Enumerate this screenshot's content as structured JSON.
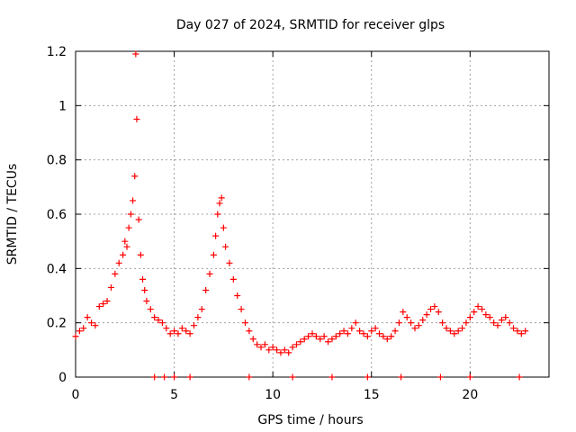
{
  "chart_data": {
    "type": "scatter",
    "title": "Day 027 of 2024, SRMTID for receiver glps",
    "xlabel": "GPS time / hours",
    "ylabel": "SRMTID / TECUs",
    "xlim": [
      0,
      24
    ],
    "ylim": [
      0,
      1.2
    ],
    "x_ticks": [
      0,
      5,
      10,
      15,
      20
    ],
    "x_tick_labels": [
      "0",
      "5",
      "10",
      "15",
      "20"
    ],
    "y_ticks": [
      0,
      0.2,
      0.4,
      0.6,
      0.8,
      1.0,
      1.2
    ],
    "y_tick_labels": [
      "0",
      "0.2",
      "0.4",
      "0.6",
      "0.8",
      "1",
      "1.2"
    ],
    "grid": true,
    "marker": "+",
    "color": "#ff0000",
    "series": [
      {
        "name": "SRMTID",
        "x": [
          0.0,
          0.2,
          0.4,
          0.6,
          0.8,
          1.0,
          1.2,
          1.4,
          1.6,
          1.8,
          2.0,
          2.2,
          2.4,
          2.5,
          2.6,
          2.7,
          2.8,
          2.9,
          3.0,
          3.05,
          3.1,
          3.2,
          3.3,
          3.4,
          3.5,
          3.6,
          3.8,
          4.0,
          4.2,
          4.4,
          4.6,
          4.8,
          5.0,
          5.2,
          5.4,
          5.6,
          5.8,
          6.0,
          6.2,
          6.4,
          6.6,
          6.8,
          7.0,
          7.1,
          7.2,
          7.3,
          7.4,
          7.5,
          7.6,
          7.8,
          8.0,
          8.2,
          8.4,
          8.6,
          8.8,
          9.0,
          9.2,
          9.4,
          9.6,
          9.8,
          10.0,
          10.2,
          10.4,
          10.6,
          10.8,
          11.0,
          11.2,
          11.4,
          11.6,
          11.8,
          12.0,
          12.2,
          12.4,
          12.6,
          12.8,
          13.0,
          13.2,
          13.4,
          13.6,
          13.8,
          14.0,
          14.2,
          14.4,
          14.6,
          14.8,
          15.0,
          15.2,
          15.4,
          15.6,
          15.8,
          16.0,
          16.2,
          16.4,
          16.6,
          16.8,
          17.0,
          17.2,
          17.4,
          17.6,
          17.8,
          18.0,
          18.2,
          18.4,
          18.6,
          18.8,
          19.0,
          19.2,
          19.4,
          19.6,
          19.8,
          20.0,
          20.2,
          20.4,
          20.6,
          20.8,
          21.0,
          21.2,
          21.4,
          21.6,
          21.8,
          22.0,
          22.2,
          22.4,
          22.6,
          22.8
        ],
        "y": [
          0.15,
          0.17,
          0.18,
          0.22,
          0.2,
          0.19,
          0.26,
          0.27,
          0.28,
          0.33,
          0.38,
          0.42,
          0.45,
          0.5,
          0.48,
          0.55,
          0.6,
          0.65,
          0.74,
          1.19,
          0.95,
          0.58,
          0.45,
          0.36,
          0.32,
          0.28,
          0.25,
          0.22,
          0.21,
          0.2,
          0.18,
          0.16,
          0.17,
          0.16,
          0.18,
          0.17,
          0.16,
          0.19,
          0.22,
          0.25,
          0.32,
          0.38,
          0.45,
          0.52,
          0.6,
          0.64,
          0.66,
          0.55,
          0.48,
          0.42,
          0.36,
          0.3,
          0.25,
          0.2,
          0.17,
          0.14,
          0.12,
          0.11,
          0.12,
          0.1,
          0.11,
          0.1,
          0.09,
          0.1,
          0.09,
          0.11,
          0.12,
          0.13,
          0.14,
          0.15,
          0.16,
          0.15,
          0.14,
          0.15,
          0.13,
          0.14,
          0.15,
          0.16,
          0.17,
          0.16,
          0.18,
          0.2,
          0.17,
          0.16,
          0.15,
          0.17,
          0.18,
          0.16,
          0.15,
          0.14,
          0.15,
          0.17,
          0.2,
          0.24,
          0.22,
          0.2,
          0.18,
          0.19,
          0.21,
          0.23,
          0.25,
          0.26,
          0.24,
          0.2,
          0.18,
          0.17,
          0.16,
          0.17,
          0.18,
          0.2,
          0.22,
          0.24,
          0.26,
          0.25,
          0.23,
          0.22,
          0.2,
          0.19,
          0.21,
          0.22,
          0.2,
          0.18,
          0.17,
          0.16,
          0.17
        ]
      }
    ],
    "zero_markers_x": [
      4.0,
      4.5,
      5.0,
      5.8,
      8.8,
      11.0,
      13.0,
      14.8,
      16.5,
      18.5,
      20.0,
      22.5
    ]
  }
}
